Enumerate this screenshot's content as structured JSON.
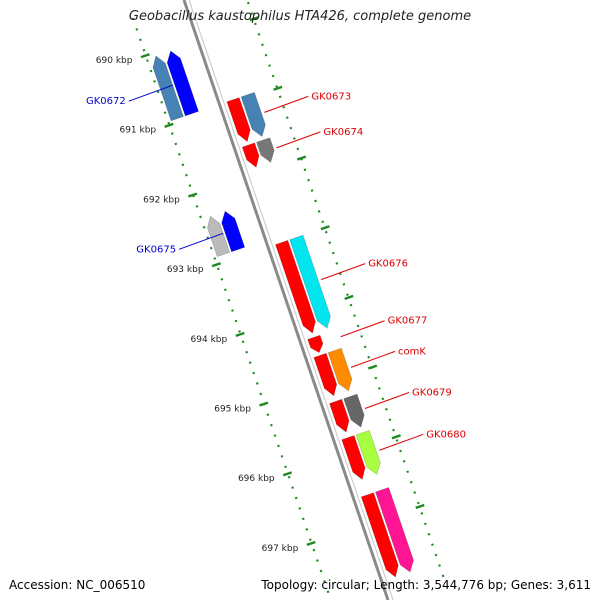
{
  "title": "Geobacillus kaustophilus HTA426, complete genome",
  "footer": {
    "accession": "Accession: NC_006510",
    "topology": "Topology: circular; Length: 3,544,776 bp; Genes: 3,611"
  },
  "colors": {
    "backbone": "#8a8a8a",
    "ruler_dots": "#1e8a1e",
    "reverse_label": "#0000cc",
    "forward_label": "#dd0000"
  },
  "ruler": {
    "unit": "kbp",
    "ticks": [
      {
        "pos_kbp": 690,
        "label": "690 kbp"
      },
      {
        "pos_kbp": 691,
        "label": "691 kbp"
      },
      {
        "pos_kbp": 692,
        "label": "692 kbp"
      },
      {
        "pos_kbp": 693,
        "label": "693 kbp"
      },
      {
        "pos_kbp": 694,
        "label": "694 kbp"
      },
      {
        "pos_kbp": 695,
        "label": "695 kbp"
      },
      {
        "pos_kbp": 696,
        "label": "696 kbp"
      },
      {
        "pos_kbp": 697,
        "label": "697 kbp"
      }
    ]
  },
  "genes": [
    {
      "label": "GK0672",
      "strand": "-",
      "start_kbp": 690.05,
      "end_kbp": 690.95,
      "color": "#0000ff",
      "cog_color": "#4682b4"
    },
    {
      "label": "GK0673",
      "strand": "+",
      "start_kbp": 690.95,
      "end_kbp": 691.55,
      "color": "#ff0000",
      "cog_color": "#4682b4"
    },
    {
      "label": "GK0674",
      "strand": "+",
      "start_kbp": 691.6,
      "end_kbp": 691.92,
      "color": "#ff0000",
      "cog_color": "#777777"
    },
    {
      "label": "GK0675",
      "strand": "-",
      "start_kbp": 692.35,
      "end_kbp": 692.9,
      "color": "#0000ff",
      "cog_color": "#bbbbbb"
    },
    {
      "label": "GK0676",
      "strand": "+",
      "start_kbp": 693.0,
      "end_kbp": 694.3,
      "color": "#ff0000",
      "cog_color": "#00e5ee"
    },
    {
      "label": "GK0677",
      "strand": "+",
      "start_kbp": 694.36,
      "end_kbp": 694.58,
      "color": "#ff0000",
      "cog_color": null
    },
    {
      "label": "comK",
      "strand": "+",
      "start_kbp": 694.62,
      "end_kbp": 695.2,
      "color": "#ff0000",
      "cog_color": "#ff8c00"
    },
    {
      "label": "GK0679",
      "strand": "+",
      "start_kbp": 695.28,
      "end_kbp": 695.72,
      "color": "#ff0000",
      "cog_color": "#666666"
    },
    {
      "label": "GK0680",
      "strand": "+",
      "start_kbp": 695.8,
      "end_kbp": 696.4,
      "color": "#ff0000",
      "cog_color": "#a8ff40"
    },
    {
      "label": "",
      "strand": "+",
      "start_kbp": 696.62,
      "end_kbp": 697.8,
      "color": "#ff0000",
      "cog_color": "#ff1493"
    }
  ]
}
